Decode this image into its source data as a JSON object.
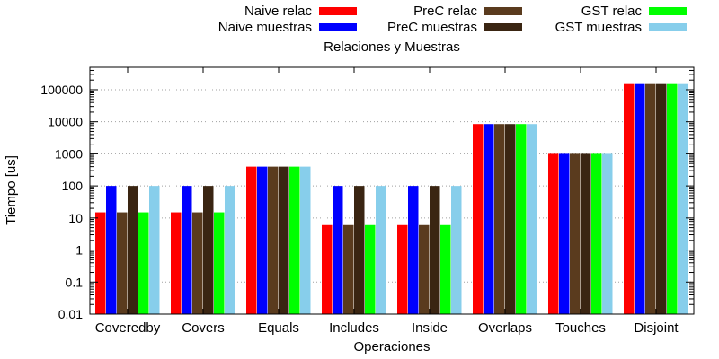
{
  "chart_data": {
    "type": "bar",
    "title": "Relaciones y Muestras",
    "xlabel": "Operaciones",
    "ylabel": "Tiempo [us]",
    "y_scale": "log",
    "ylim": [
      0.01,
      500000
    ],
    "grid": "horizontal dotted",
    "legend_position": "top-right, outside plot",
    "categories": [
      "Coveredby",
      "Covers",
      "Equals",
      "Includes",
      "Inside",
      "Overlaps",
      "Touches",
      "Disjoint"
    ],
    "y_ticks": [
      {
        "value": 0.01,
        "label": "0.01"
      },
      {
        "value": 0.1,
        "label": "0.1"
      },
      {
        "value": 1,
        "label": "1"
      },
      {
        "value": 10,
        "label": "10"
      },
      {
        "value": 100,
        "label": "100"
      },
      {
        "value": 1000,
        "label": "1000"
      },
      {
        "value": 10000,
        "label": "10000"
      },
      {
        "value": 100000,
        "label": "100000"
      }
    ],
    "series": [
      {
        "name": "Naive relac",
        "color": "#ff0000",
        "values": [
          15,
          15,
          400,
          6,
          6,
          8500,
          1000,
          150000
        ]
      },
      {
        "name": "Naive muestras",
        "color": "#0000ff",
        "values": [
          100,
          100,
          400,
          100,
          100,
          8500,
          1000,
          150000
        ]
      },
      {
        "name": "PreC relac",
        "color": "#5a3b1e",
        "values": [
          15,
          15,
          400,
          6,
          6,
          8500,
          1000,
          150000
        ]
      },
      {
        "name": "PreC muestras",
        "color": "#3a2512",
        "values": [
          100,
          100,
          400,
          100,
          100,
          8500,
          1000,
          150000
        ]
      },
      {
        "name": "GST relac",
        "color": "#00ff00",
        "values": [
          15,
          15,
          400,
          6,
          6,
          8500,
          1000,
          150000
        ]
      },
      {
        "name": "GST muestras",
        "color": "#87ceeb",
        "values": [
          100,
          100,
          400,
          100,
          100,
          8500,
          1000,
          150000
        ]
      }
    ]
  }
}
